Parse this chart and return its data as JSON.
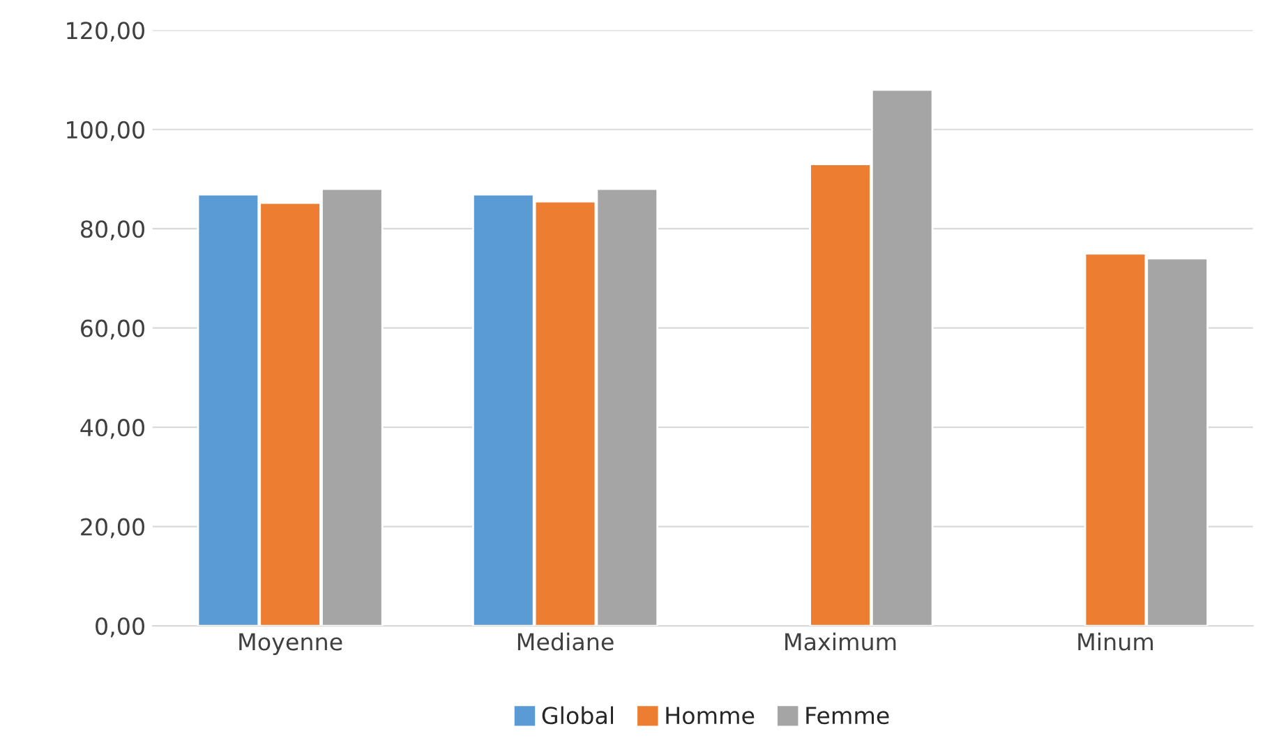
{
  "chart_data": {
    "type": "bar",
    "categories": [
      "Moyenne",
      "Mediane",
      "Maximum",
      "Minum"
    ],
    "series": [
      {
        "name": "Global",
        "color": "#5b9bd5",
        "values": [
          86.9,
          86.9,
          null,
          null
        ]
      },
      {
        "name": "Homme",
        "color": "#ed7d31",
        "values": [
          85.2,
          85.5,
          93,
          75
        ]
      },
      {
        "name": "Femme",
        "color": "#a5a5a5",
        "values": [
          88,
          88,
          108,
          74
        ]
      }
    ],
    "ylim": [
      0,
      120
    ],
    "yticks": [
      {
        "value": 0,
        "label": "0,00"
      },
      {
        "value": 20,
        "label": "20,00"
      },
      {
        "value": 40,
        "label": "40,00"
      },
      {
        "value": 60,
        "label": "60,00"
      },
      {
        "value": 80,
        "label": "80,00"
      },
      {
        "value": 100,
        "label": "100,00"
      },
      {
        "value": 120,
        "label": "120,00"
      }
    ],
    "grid": "y",
    "legend": "bottom"
  }
}
